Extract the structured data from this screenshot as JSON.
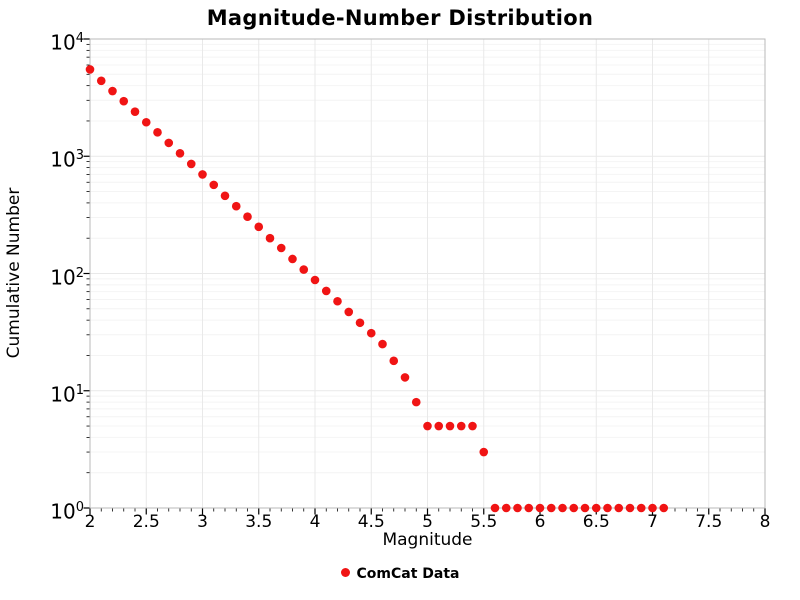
{
  "chart_data": {
    "type": "scatter",
    "title": "Magnitude-Number Distribution",
    "xlabel": "Magnitude",
    "ylabel": "Cumulative Number",
    "y_scale": "log",
    "grid": true,
    "x_range": [
      2,
      8
    ],
    "y_range_exponents": [
      0,
      4
    ],
    "x_ticks": [
      "2",
      "2.5",
      "3",
      "3.5",
      "4",
      "4.5",
      "5",
      "5.5",
      "6",
      "6.5",
      "7",
      "7.5",
      "8"
    ],
    "x_tick_values": [
      2,
      2.5,
      3,
      3.5,
      4,
      4.5,
      5,
      5.5,
      6,
      6.5,
      7,
      7.5,
      8
    ],
    "y_tick_exponents": [
      0,
      1,
      2,
      3,
      4
    ],
    "legend_position": "bottom-center",
    "legend": [
      {
        "label": "ComCat Data",
        "color": "#f01414",
        "marker": "circle"
      }
    ],
    "series": [
      {
        "name": "ComCat Data",
        "color": "#f01414",
        "marker": "circle",
        "x": [
          2.0,
          2.1,
          2.2,
          2.3,
          2.4,
          2.5,
          2.6,
          2.7,
          2.8,
          2.9,
          3.0,
          3.1,
          3.2,
          3.3,
          3.4,
          3.5,
          3.6,
          3.7,
          3.8,
          3.9,
          4.0,
          4.1,
          4.2,
          4.3,
          4.4,
          4.5,
          4.6,
          4.7,
          4.8,
          4.9,
          5.0,
          5.1,
          5.2,
          5.3,
          5.4,
          5.5,
          5.6,
          5.7,
          5.8,
          5.9,
          6.0,
          6.1,
          6.2,
          6.3,
          6.4,
          6.5,
          6.6,
          6.7,
          6.8,
          6.9,
          7.0,
          7.1
        ],
        "y": [
          5500,
          4400,
          3600,
          2950,
          2400,
          1950,
          1600,
          1300,
          1060,
          860,
          700,
          570,
          460,
          375,
          305,
          250,
          200,
          165,
          133,
          108,
          88,
          71,
          58,
          47,
          38,
          31,
          25,
          18,
          13,
          8,
          5,
          5,
          5,
          5,
          5,
          3,
          1,
          1,
          1,
          1,
          1,
          1,
          1,
          1,
          1,
          1,
          1,
          1,
          1,
          1,
          1,
          1
        ]
      }
    ]
  }
}
